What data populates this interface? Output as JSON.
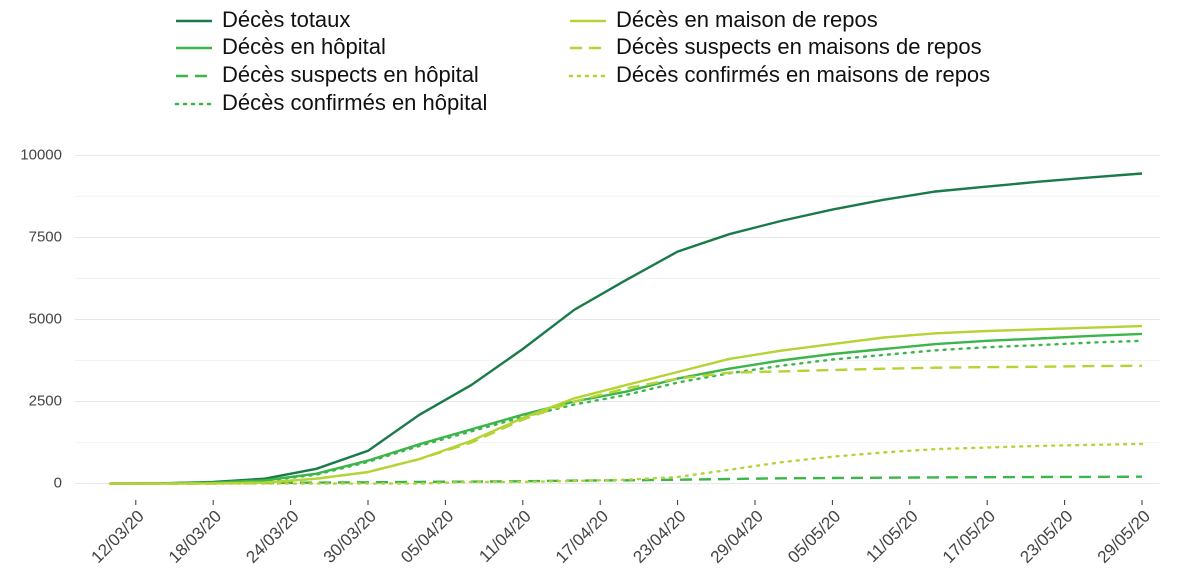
{
  "chart_data": {
    "type": "line",
    "x": [
      "10/03/20",
      "14/03/20",
      "18/03/20",
      "22/03/20",
      "26/03/20",
      "30/03/20",
      "03/04/20",
      "07/04/20",
      "11/04/20",
      "15/04/20",
      "19/04/20",
      "23/04/20",
      "27/04/20",
      "01/05/20",
      "05/05/20",
      "09/05/20",
      "13/05/20",
      "17/05/20",
      "21/05/20",
      "25/05/20",
      "29/05/20"
    ],
    "series": [
      {
        "name": "Décès totaux",
        "color": "#1a7a4a",
        "linestyle": "solid",
        "values": [
          0,
          10,
          50,
          150,
          450,
          1000,
          2100,
          3000,
          4100,
          5300,
          6200,
          7070,
          7600,
          8000,
          8350,
          8650,
          8900,
          9050,
          9200,
          9330,
          9450
        ]
      },
      {
        "name": "Décès en hôpital",
        "color": "#3cb54a",
        "linestyle": "solid",
        "values": [
          0,
          5,
          30,
          100,
          300,
          700,
          1200,
          1650,
          2100,
          2500,
          2800,
          3200,
          3500,
          3750,
          3950,
          4100,
          4250,
          4350,
          4420,
          4500,
          4560
        ]
      },
      {
        "name": "Décès suspects en hôpital",
        "color": "#3cb54a",
        "linestyle": "dashed",
        "values": [
          0,
          0,
          5,
          15,
          30,
          40,
          50,
          60,
          70,
          90,
          100,
          120,
          140,
          160,
          170,
          180,
          190,
          195,
          200,
          205,
          210
        ]
      },
      {
        "name": "Décès confirmés en hôpital",
        "color": "#3cb54a",
        "linestyle": "dotted",
        "values": [
          0,
          5,
          25,
          85,
          270,
          660,
          1150,
          1590,
          2030,
          2410,
          2700,
          3080,
          3360,
          3590,
          3780,
          3920,
          4060,
          4155,
          4220,
          4295,
          4350
        ]
      },
      {
        "name": "Décès en maison de repos",
        "color": "#b5d334",
        "linestyle": "solid",
        "values": [
          0,
          0,
          5,
          30,
          150,
          350,
          750,
          1300,
          2000,
          2600,
          3000,
          3400,
          3800,
          4050,
          4250,
          4450,
          4580,
          4650,
          4700,
          4750,
          4800
        ]
      },
      {
        "name": "Décès suspects en maisons de repos",
        "color": "#b5d334",
        "linestyle": "dashed",
        "values": [
          0,
          0,
          5,
          30,
          150,
          350,
          750,
          1250,
          1950,
          2500,
          2900,
          3200,
          3380,
          3420,
          3460,
          3500,
          3530,
          3550,
          3560,
          3580,
          3590
        ]
      },
      {
        "name": "Décès confirmés en maisons de repos",
        "color": "#b5d334",
        "linestyle": "dotted",
        "values": [
          0,
          0,
          0,
          0,
          0,
          0,
          0,
          50,
          50,
          80,
          120,
          200,
          420,
          650,
          820,
          950,
          1050,
          1100,
          1150,
          1180,
          1210
        ]
      }
    ],
    "xticks": [
      "12/03/20",
      "18/03/20",
      "24/03/20",
      "30/03/20",
      "05/04/20",
      "11/04/20",
      "17/04/20",
      "23/04/20",
      "29/04/20",
      "05/05/20",
      "11/05/20",
      "17/05/20",
      "23/05/20",
      "29/05/20"
    ],
    "ylim": [
      -500,
      10500
    ],
    "yticks": [
      0,
      2500,
      5000,
      7500,
      10000
    ],
    "grid": true
  }
}
